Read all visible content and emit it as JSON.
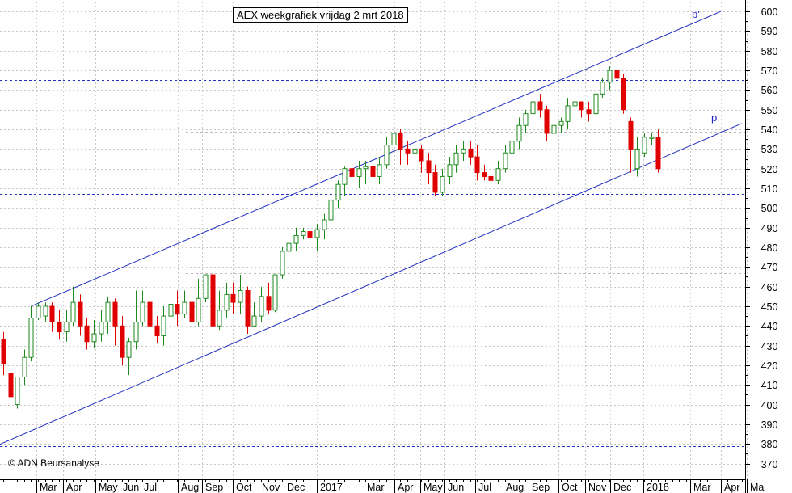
{
  "chart_data": {
    "type": "candlestick",
    "title": "AEX weekgrafiek vrijdag 2 mrt 2018",
    "copyright": "© ADN Beursanalyse",
    "y_ticks": [
      370,
      380,
      390,
      400,
      410,
      420,
      430,
      440,
      450,
      460,
      470,
      480,
      490,
      500,
      510,
      520,
      530,
      540,
      550,
      560,
      570,
      580,
      590,
      600
    ],
    "ylim": [
      362,
      605
    ],
    "grid": true,
    "x_labels": [
      "Mar",
      "Apr",
      "May",
      "Jun",
      "Jul",
      "Aug",
      "Sep",
      "Oct",
      "Nov",
      "Dec",
      "2017",
      "Mar",
      "Apr",
      "May",
      "Jun",
      "Jul",
      "Aug",
      "Sep",
      "Oct",
      "Nov",
      "Dec",
      "2018",
      "Mar",
      "Apr",
      "Ma"
    ],
    "horizontal_lines": [
      {
        "value": 565,
        "style": "dashed",
        "color": "#2030c0"
      },
      {
        "value": 507,
        "style": "dashed",
        "color": "#2030c0"
      },
      {
        "value": 379,
        "style": "dashed",
        "color": "#2030c0"
      },
      {
        "value": 467,
        "style": "dashed",
        "color": "#bbbbbb"
      },
      {
        "value": 539,
        "style": "dashed",
        "color": "#bbbbbb"
      }
    ],
    "channel_lines": [
      {
        "label": "p'",
        "start_week": 4,
        "start": 450,
        "end_week": 103,
        "end": 600
      },
      {
        "label": "p",
        "start_week": -1,
        "start": 379,
        "end_week": 106,
        "end": 543
      }
    ],
    "up_color": "#1e8a1e",
    "down_color": "#e00000",
    "candles": [
      [
        433,
        421,
        437,
        415
      ],
      [
        416,
        404,
        421,
        390
      ],
      [
        400,
        414,
        414,
        398
      ],
      [
        414,
        424,
        428,
        410
      ],
      [
        424,
        444,
        450,
        422
      ],
      [
        444,
        450,
        452,
        443
      ],
      [
        445,
        450,
        452,
        442
      ],
      [
        450,
        442,
        452,
        437
      ],
      [
        442,
        437,
        448,
        433
      ],
      [
        437,
        442,
        448,
        432
      ],
      [
        442,
        452,
        460,
        440
      ],
      [
        452,
        440,
        456,
        435
      ],
      [
        440,
        432,
        444,
        428
      ],
      [
        432,
        436,
        443,
        429
      ],
      [
        436,
        442,
        448,
        432
      ],
      [
        442,
        452,
        455,
        436
      ],
      [
        452,
        440,
        454,
        430
      ],
      [
        440,
        424,
        445,
        420
      ],
      [
        424,
        432,
        434,
        415
      ],
      [
        432,
        442,
        458,
        428
      ],
      [
        442,
        452,
        458,
        440
      ],
      [
        452,
        440,
        456,
        436
      ],
      [
        440,
        435,
        445,
        431
      ],
      [
        435,
        445,
        450,
        430
      ],
      [
        445,
        451,
        457,
        442
      ],
      [
        451,
        446,
        458,
        440
      ],
      [
        446,
        452,
        458,
        444
      ],
      [
        452,
        442,
        458,
        438
      ],
      [
        442,
        454,
        464,
        440
      ],
      [
        454,
        466,
        466,
        452
      ],
      [
        466,
        440,
        466,
        438
      ],
      [
        440,
        448,
        458,
        438
      ],
      [
        448,
        456,
        462,
        444
      ],
      [
        456,
        452,
        462,
        446
      ],
      [
        452,
        458,
        466,
        446
      ],
      [
        458,
        440,
        460,
        436
      ],
      [
        440,
        445,
        452,
        440
      ],
      [
        445,
        455,
        460,
        442
      ],
      [
        455,
        448,
        462,
        446
      ],
      [
        448,
        466,
        466,
        447
      ],
      [
        466,
        478,
        480,
        464
      ],
      [
        478,
        482,
        485,
        476
      ],
      [
        482,
        486,
        490,
        478
      ],
      [
        486,
        488,
        490,
        484
      ],
      [
        488,
        485,
        491,
        482
      ],
      [
        485,
        489,
        492,
        478
      ],
      [
        489,
        494,
        497,
        484
      ],
      [
        494,
        504,
        508,
        492
      ],
      [
        504,
        512,
        514,
        500
      ],
      [
        512,
        520,
        521,
        506
      ],
      [
        520,
        516,
        524,
        508
      ],
      [
        516,
        520,
        524,
        510
      ],
      [
        520,
        521,
        524,
        512
      ],
      [
        521,
        516,
        524,
        513
      ],
      [
        516,
        522,
        526,
        512
      ],
      [
        522,
        532,
        536,
        520
      ],
      [
        532,
        538,
        540,
        528
      ],
      [
        538,
        530,
        540,
        522
      ],
      [
        530,
        528,
        534,
        522
      ],
      [
        528,
        530,
        534,
        524
      ],
      [
        530,
        524,
        532,
        518
      ],
      [
        524,
        518,
        528,
        512
      ],
      [
        518,
        508,
        522,
        506
      ],
      [
        508,
        516,
        520,
        506
      ],
      [
        516,
        522,
        526,
        512
      ],
      [
        522,
        528,
        532,
        518
      ],
      [
        528,
        530,
        534,
        524
      ],
      [
        530,
        526,
        534,
        522
      ],
      [
        526,
        518,
        532,
        514
      ],
      [
        518,
        516,
        522,
        514
      ],
      [
        516,
        514,
        520,
        506
      ],
      [
        514,
        520,
        524,
        512
      ],
      [
        520,
        528,
        532,
        518
      ],
      [
        528,
        534,
        538,
        526
      ],
      [
        534,
        542,
        546,
        530
      ],
      [
        542,
        548,
        550,
        538
      ],
      [
        548,
        554,
        558,
        544
      ],
      [
        554,
        550,
        558,
        546
      ],
      [
        550,
        538,
        552,
        534
      ],
      [
        538,
        542,
        548,
        536
      ],
      [
        542,
        544,
        546,
        538
      ],
      [
        544,
        552,
        556,
        540
      ],
      [
        552,
        554,
        556,
        548
      ],
      [
        554,
        550,
        554,
        546
      ],
      [
        550,
        548,
        554,
        544
      ],
      [
        548,
        558,
        562,
        546
      ],
      [
        558,
        564,
        566,
        556
      ],
      [
        564,
        570,
        572,
        560
      ],
      [
        570,
        566,
        574,
        562
      ],
      [
        566,
        550,
        568,
        548
      ],
      [
        544,
        530,
        546,
        518
      ],
      [
        520,
        530,
        536,
        516
      ],
      [
        528,
        536,
        538,
        526
      ],
      [
        536,
        536,
        538,
        532
      ],
      [
        536,
        520,
        540,
        518
      ]
    ]
  }
}
